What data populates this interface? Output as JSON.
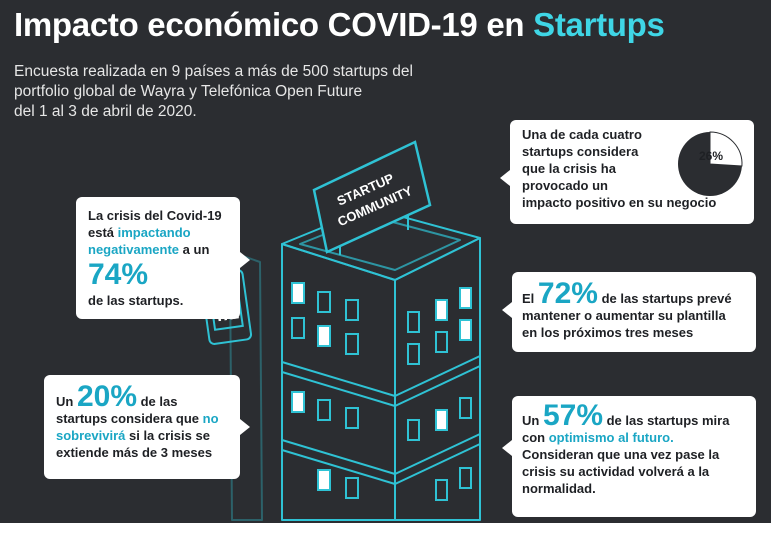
{
  "title": {
    "main": "Impacto económico COVID-19 en ",
    "accent": "Startups"
  },
  "subtitle": [
    "Encuesta realizada en 9 países a más de 500 startups del",
    "portfolio global de Wayra y Telefónica Open Future",
    "del 1 al 3 de abril de 2020."
  ],
  "sign": {
    "line1": "STARTUP",
    "line2": "COMMUNITY"
  },
  "card1": {
    "line1": "La crisis del Covid-19",
    "pre": "está ",
    "hl1": "impactando",
    "hl2": "negativamente",
    "post": " a un",
    "big": "74%",
    "tail": "de las startups."
  },
  "card2": {
    "pre": "Un ",
    "big": "20%",
    "post": " de las",
    "line2": "startups considera que ",
    "hl1": "no",
    "hl2": "sobrevivirá",
    "post2": " si la crisis se",
    "line4": "extiende más de 3 meses"
  },
  "card3": {
    "lines": [
      "Una de cada cuatro",
      "startups considera",
      "que la crisis ha",
      "provocado un",
      "impacto positivo en su negocio"
    ],
    "pie_label": "26%",
    "pie_value": 26
  },
  "card4": {
    "pre": "El ",
    "big": "72%",
    "post": " de las startups prevé",
    "line2": "mantener o aumentar su plantilla",
    "line3": "en los próximos tres meses"
  },
  "card5": {
    "pre": "Un ",
    "big": "57%",
    "post": " de las startups mira",
    "pre2": "con ",
    "hl": "optimismo al futuro.",
    "lines": [
      "Consideran que una  vez pase la",
      "crisis su actividad volverá a la",
      "normalidad."
    ]
  },
  "colors": {
    "background": "#2b2d31",
    "accent": "#3fd6e6",
    "outline": "#2fc2d4",
    "text": "#1e2024"
  }
}
